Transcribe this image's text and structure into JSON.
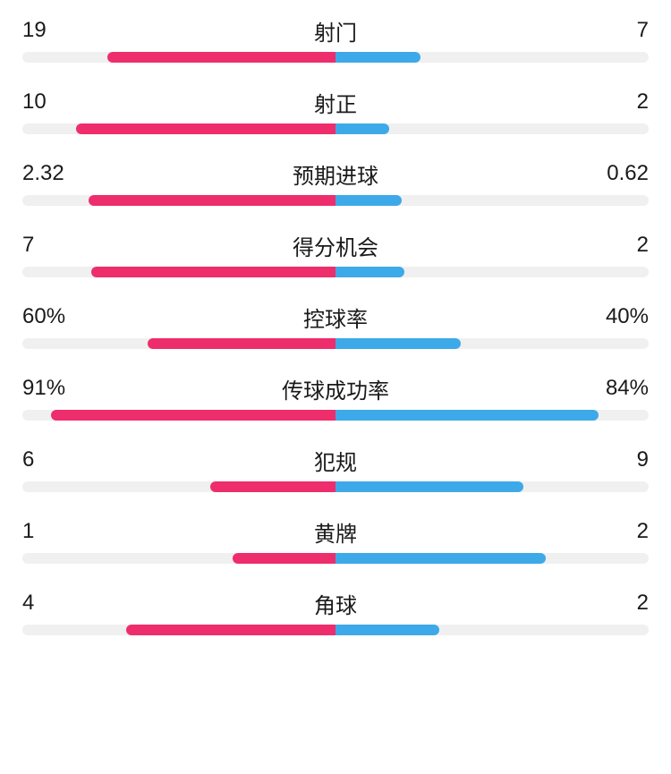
{
  "colors": {
    "left_bar": "#ee2d6d",
    "right_bar": "#3ea9e8",
    "track": "#f0f0f0",
    "text": "#1a1a1a",
    "background": "#ffffff"
  },
  "typography": {
    "font_size": 24,
    "font_weight": 400
  },
  "stats": [
    {
      "label": "射门",
      "left_value": "19",
      "right_value": "7",
      "left_bar_pct": 73,
      "right_bar_pct": 27
    },
    {
      "label": "射正",
      "left_value": "10",
      "right_value": "2",
      "left_bar_pct": 83,
      "right_bar_pct": 17
    },
    {
      "label": "预期进球",
      "left_value": "2.32",
      "right_value": "0.62",
      "left_bar_pct": 79,
      "right_bar_pct": 21
    },
    {
      "label": "得分机会",
      "left_value": "7",
      "right_value": "2",
      "left_bar_pct": 78,
      "right_bar_pct": 22
    },
    {
      "label": "控球率",
      "left_value": "60%",
      "right_value": "40%",
      "left_bar_pct": 60,
      "right_bar_pct": 40
    },
    {
      "label": "传球成功率",
      "left_value": "91%",
      "right_value": "84%",
      "left_bar_pct": 91,
      "right_bar_pct": 84
    },
    {
      "label": "犯规",
      "left_value": "6",
      "right_value": "9",
      "left_bar_pct": 40,
      "right_bar_pct": 60
    },
    {
      "label": "黄牌",
      "left_value": "1",
      "right_value": "2",
      "left_bar_pct": 33,
      "right_bar_pct": 67
    },
    {
      "label": "角球",
      "left_value": "4",
      "right_value": "2",
      "left_bar_pct": 67,
      "right_bar_pct": 33
    }
  ]
}
